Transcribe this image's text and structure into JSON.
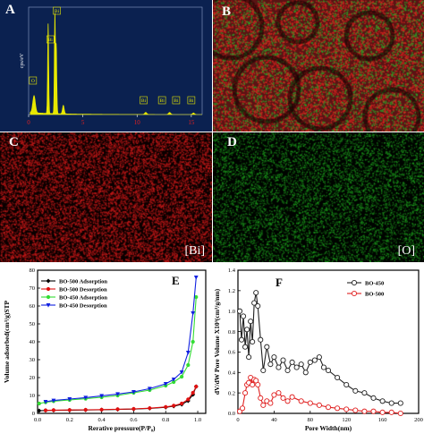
{
  "panels": {
    "A": {
      "label": "A",
      "y_axis_label": "cps/eV",
      "x_ticks": [
        "0",
        "5",
        "10",
        "15"
      ],
      "peaks": [
        "Bi",
        "Bi",
        "O",
        "Bi",
        "Bi",
        "Bi",
        "Bi"
      ]
    },
    "B": {
      "label": "B"
    },
    "C": {
      "label": "C",
      "element_tag": "[Bi]"
    },
    "D": {
      "label": "D",
      "element_tag": "[O]"
    },
    "E": {
      "label": "E"
    },
    "F": {
      "label": "F"
    }
  },
  "colors": {
    "eds_bg": "#0b2150",
    "eds_spectrum": "#e8e800",
    "bi_map": "#c41818",
    "o_map": "#1aa81a",
    "bo500_ads": "#000000",
    "bo500_des": "#e01010",
    "bo450_ads": "#33dd33",
    "bo450_des": "#1020e0",
    "psd_bo450": "#222222",
    "psd_bo500": "#e02020"
  },
  "chart_data": [
    {
      "type": "line",
      "panel": "E",
      "xlabel": "Rerative pressure(P/P₀)",
      "ylabel": "Volume adsorbed(cm³/g)STP",
      "xlim": [
        0,
        1.05
      ],
      "ylim": [
        0,
        80
      ],
      "x_ticks": [
        "0.0",
        "0.2",
        "0.4",
        "0.6",
        "0.8",
        "1.0"
      ],
      "y_ticks": [
        "0",
        "10",
        "20",
        "30",
        "40",
        "50",
        "60",
        "70",
        "80"
      ],
      "legend_position": "top-left",
      "series": [
        {
          "name": "BO-500 Adsorption",
          "x": [
            0.01,
            0.05,
            0.1,
            0.2,
            0.3,
            0.4,
            0.5,
            0.6,
            0.7,
            0.8,
            0.85,
            0.9,
            0.94,
            0.97,
            0.99
          ],
          "y": [
            1.5,
            1.6,
            1.7,
            1.8,
            1.9,
            2.0,
            2.2,
            2.4,
            2.8,
            3.4,
            4.0,
            5.0,
            7.0,
            10.5,
            15.0
          ]
        },
        {
          "name": "BO-500 Desorption",
          "x": [
            0.99,
            0.97,
            0.94,
            0.9,
            0.85,
            0.8,
            0.7,
            0.6,
            0.5,
            0.4,
            0.3,
            0.2,
            0.1,
            0.05
          ],
          "y": [
            15.0,
            11.5,
            7.8,
            5.5,
            4.3,
            3.6,
            2.9,
            2.5,
            2.3,
            2.1,
            2.0,
            1.9,
            1.8,
            1.7
          ]
        },
        {
          "name": "BO-450 Adsorption",
          "x": [
            0.01,
            0.05,
            0.1,
            0.2,
            0.3,
            0.4,
            0.5,
            0.6,
            0.7,
            0.8,
            0.85,
            0.9,
            0.94,
            0.97,
            0.99
          ],
          "y": [
            5.5,
            6.2,
            6.8,
            7.5,
            8.2,
            9.0,
            10.0,
            11.5,
            13.0,
            15.5,
            17.5,
            20.5,
            27.0,
            40.0,
            65.0
          ]
        },
        {
          "name": "BO-450 Desorption",
          "x": [
            0.99,
            0.97,
            0.94,
            0.9,
            0.85,
            0.8,
            0.7,
            0.6,
            0.5,
            0.4,
            0.3,
            0.2,
            0.1,
            0.05
          ],
          "y": [
            76.0,
            56.0,
            34.0,
            23.0,
            19.0,
            16.5,
            13.8,
            12.0,
            10.8,
            9.8,
            8.8,
            8.0,
            7.2,
            6.5
          ]
        }
      ]
    },
    {
      "type": "line",
      "panel": "F",
      "xlabel": "Pore Width(nm)",
      "ylabel": "dV/dW Pore Volume X10³(cm³/g/nm)",
      "xlim": [
        0,
        200
      ],
      "ylim": [
        0,
        1.4
      ],
      "x_ticks": [
        "0",
        "40",
        "80",
        "120",
        "160",
        "200"
      ],
      "y_ticks": [
        "0.0",
        "0.2",
        "0.4",
        "0.6",
        "0.8",
        "1.0",
        "1.2",
        "1.4"
      ],
      "legend_position": "top-right",
      "series": [
        {
          "name": "BO-450",
          "x": [
            2,
            4,
            6,
            8,
            10,
            12,
            14,
            16,
            18,
            20,
            22,
            25,
            28,
            32,
            36,
            40,
            45,
            50,
            55,
            60,
            65,
            70,
            75,
            80,
            85,
            90,
            95,
            100,
            110,
            120,
            130,
            140,
            150,
            160,
            170,
            180
          ],
          "y": [
            1.0,
            0.72,
            0.95,
            0.65,
            0.82,
            0.55,
            0.9,
            0.7,
            1.08,
            1.18,
            1.05,
            0.72,
            0.42,
            0.65,
            0.48,
            0.55,
            0.45,
            0.52,
            0.42,
            0.5,
            0.45,
            0.48,
            0.4,
            0.5,
            0.52,
            0.55,
            0.45,
            0.42,
            0.35,
            0.28,
            0.22,
            0.2,
            0.15,
            0.12,
            0.1,
            0.1
          ]
        },
        {
          "name": "BO-500",
          "x": [
            2,
            5,
            8,
            10,
            12,
            14,
            16,
            18,
            20,
            22,
            25,
            28,
            32,
            36,
            40,
            45,
            50,
            55,
            60,
            70,
            80,
            90,
            100,
            110,
            120,
            130,
            140,
            150,
            160,
            170,
            180
          ],
          "y": [
            0.02,
            0.05,
            0.2,
            0.28,
            0.3,
            0.35,
            0.28,
            0.33,
            0.32,
            0.28,
            0.15,
            0.08,
            0.12,
            0.1,
            0.18,
            0.2,
            0.15,
            0.12,
            0.16,
            0.12,
            0.1,
            0.08,
            0.06,
            0.05,
            0.04,
            0.03,
            0.02,
            0.02,
            0.01,
            0.01,
            0.0
          ]
        }
      ]
    }
  ]
}
